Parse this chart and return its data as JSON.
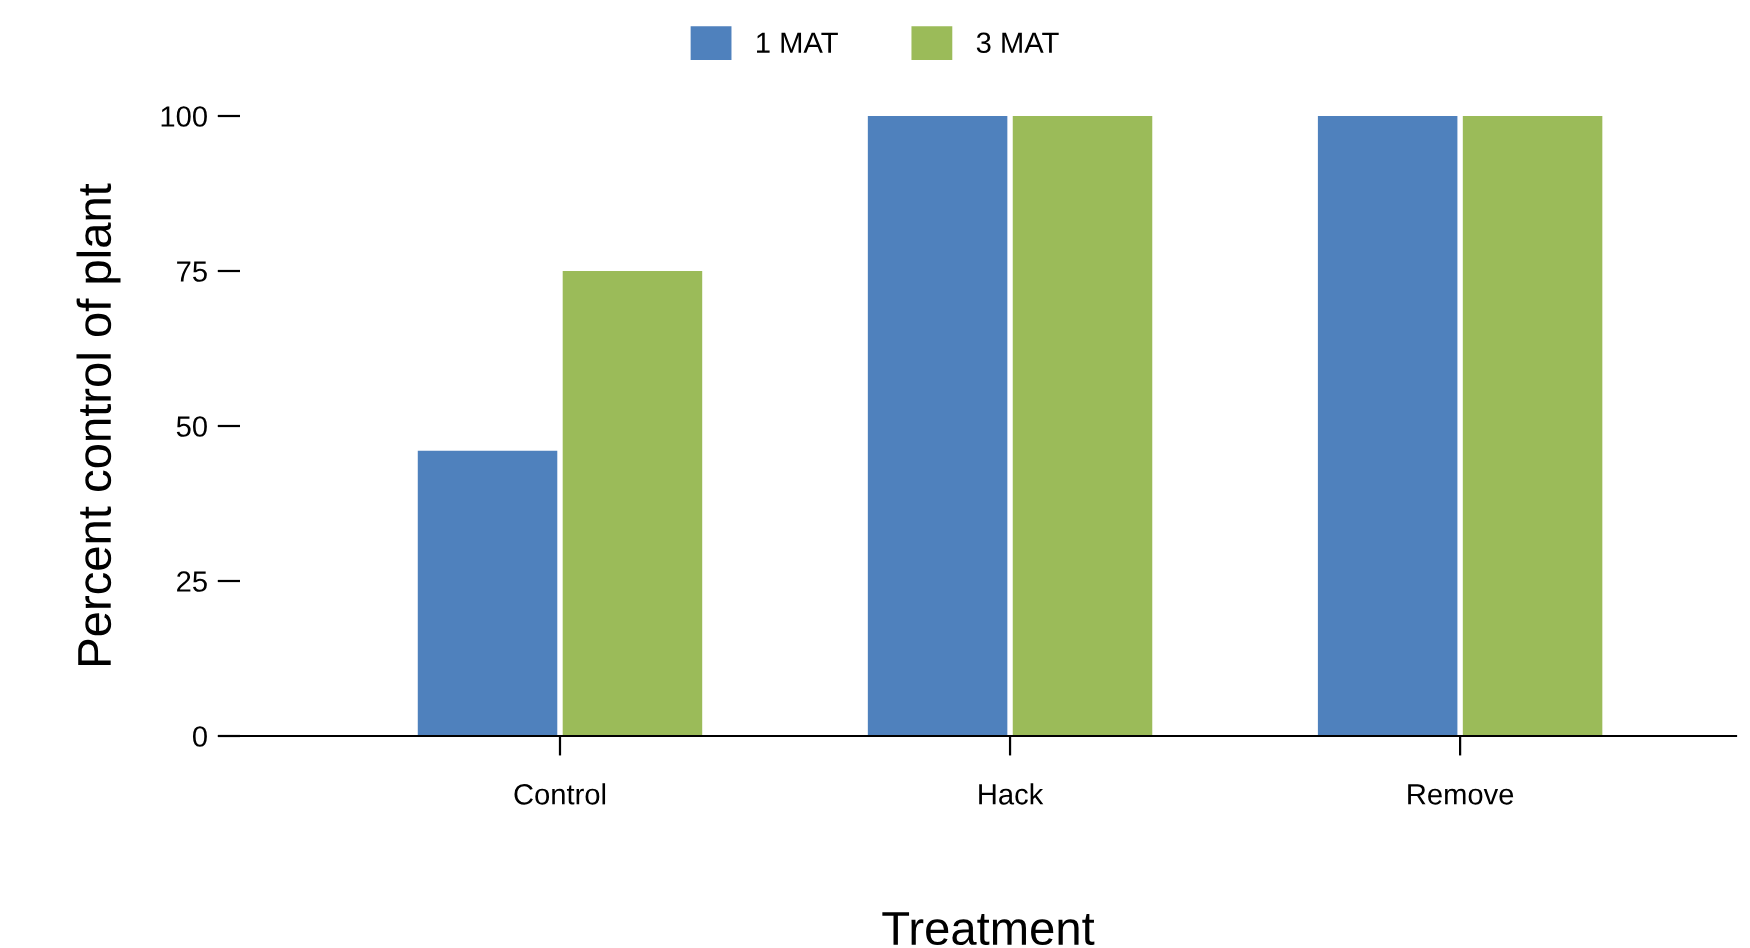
{
  "chart_data": {
    "type": "bar",
    "xlabel": "Treatment",
    "ylabel": "Percent control of plant",
    "categories": [
      "Control",
      "Hack",
      "Remove"
    ],
    "series": [
      {
        "name": "1 MAT",
        "color": "#4f81bd",
        "values": [
          46,
          100,
          100
        ]
      },
      {
        "name": "3 MAT",
        "color": "#9bbb59",
        "values": [
          75,
          100,
          100
        ]
      }
    ],
    "ylim": [
      0,
      100
    ],
    "yticks": [
      0,
      25,
      50,
      75,
      100
    ],
    "grid": false,
    "legend": "top"
  }
}
